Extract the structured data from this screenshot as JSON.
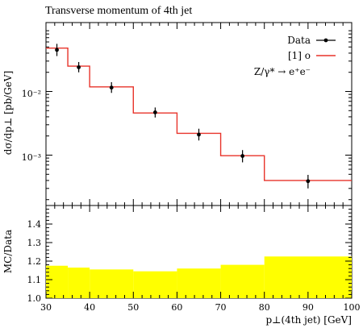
{
  "chart_data": [
    {
      "type": "line",
      "title": "Transverse momentum of 4th jet",
      "xlabel": "p⊥(4th jet) [GeV]",
      "ylabel": "dσ/dp⊥ [pb/GeV]",
      "xlim": [
        30,
        100
      ],
      "ylim": [
        0.00025,
        0.09
      ],
      "yscale": "log",
      "y_tick_labels": [
        "10⁻²",
        "10⁻³"
      ],
      "legend_placement": "top-right",
      "legend": [
        "Data",
        "[1] o"
      ],
      "annotation": "Z/γ* → e⁺e⁻",
      "bin_edges": [
        30,
        35,
        40,
        50,
        60,
        70,
        80,
        100
      ],
      "series": [
        {
          "name": "Data",
          "style": "points-with-errorbars",
          "x": [
            32.5,
            37.5,
            45,
            55,
            65,
            75,
            90
          ],
          "y": [
            0.045,
            0.024,
            0.0115,
            0.0047,
            0.0021,
            0.00097,
            0.00039
          ],
          "yerr_low": [
            0.009,
            0.004,
            0.002,
            0.0008,
            0.0004,
            0.0002,
            9e-05
          ],
          "yerr_high": [
            0.011,
            0.005,
            0.0025,
            0.0009,
            0.0005,
            0.00023,
            0.0001
          ]
        },
        {
          "name": "[1] o",
          "style": "histogram",
          "values": [
            0.048,
            0.025,
            0.0118,
            0.0046,
            0.0022,
            0.00098,
            0.0004
          ],
          "color": "#e8332a"
        }
      ]
    },
    {
      "type": "area",
      "ylabel": "MC/Data",
      "xlabel": "p⊥(4th jet) [GeV]",
      "xlim": [
        30,
        100
      ],
      "ylim": [
        1.0,
        1.5
      ],
      "y_ticks": [
        1.0,
        1.1,
        1.2,
        1.3,
        1.4
      ],
      "x_ticks": [
        30,
        40,
        50,
        60,
        70,
        80,
        90,
        100
      ],
      "bin_edges": [
        30,
        35,
        40,
        50,
        60,
        70,
        80,
        100
      ],
      "values": [
        1.175,
        1.165,
        1.155,
        1.145,
        1.16,
        1.18,
        1.225
      ],
      "color": "#ffff00"
    }
  ],
  "colors": {
    "mc_line": "#e8332a",
    "ratio_band": "#ffff00",
    "axes": "#000000"
  }
}
